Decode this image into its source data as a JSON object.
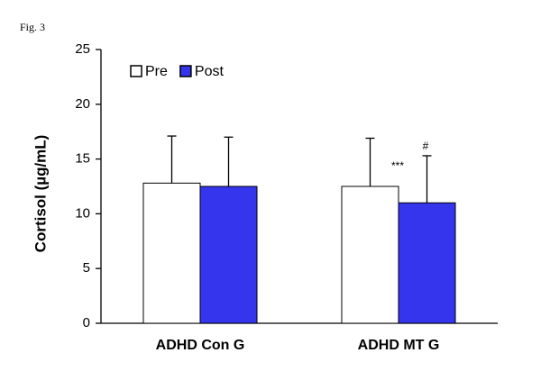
{
  "figure_label": "Fig. 3",
  "chart_data": {
    "type": "bar",
    "ylabel": "Cortisol (µg/mL)",
    "categories": [
      "ADHD Con G",
      "ADHD MT G"
    ],
    "series": [
      {
        "name": "Pre",
        "color": "#ffffff",
        "values": [
          12.8,
          12.5
        ],
        "errors": [
          4.3,
          4.4
        ]
      },
      {
        "name": "Post",
        "color": "#3535ee",
        "values": [
          12.5,
          11.0
        ],
        "errors": [
          4.5,
          4.3
        ]
      }
    ],
    "annotations": [
      "***",
      "#"
    ],
    "ylim": [
      0,
      25
    ],
    "yticks": [
      0,
      5,
      10,
      15,
      20,
      25
    ],
    "legend": "upper left"
  }
}
